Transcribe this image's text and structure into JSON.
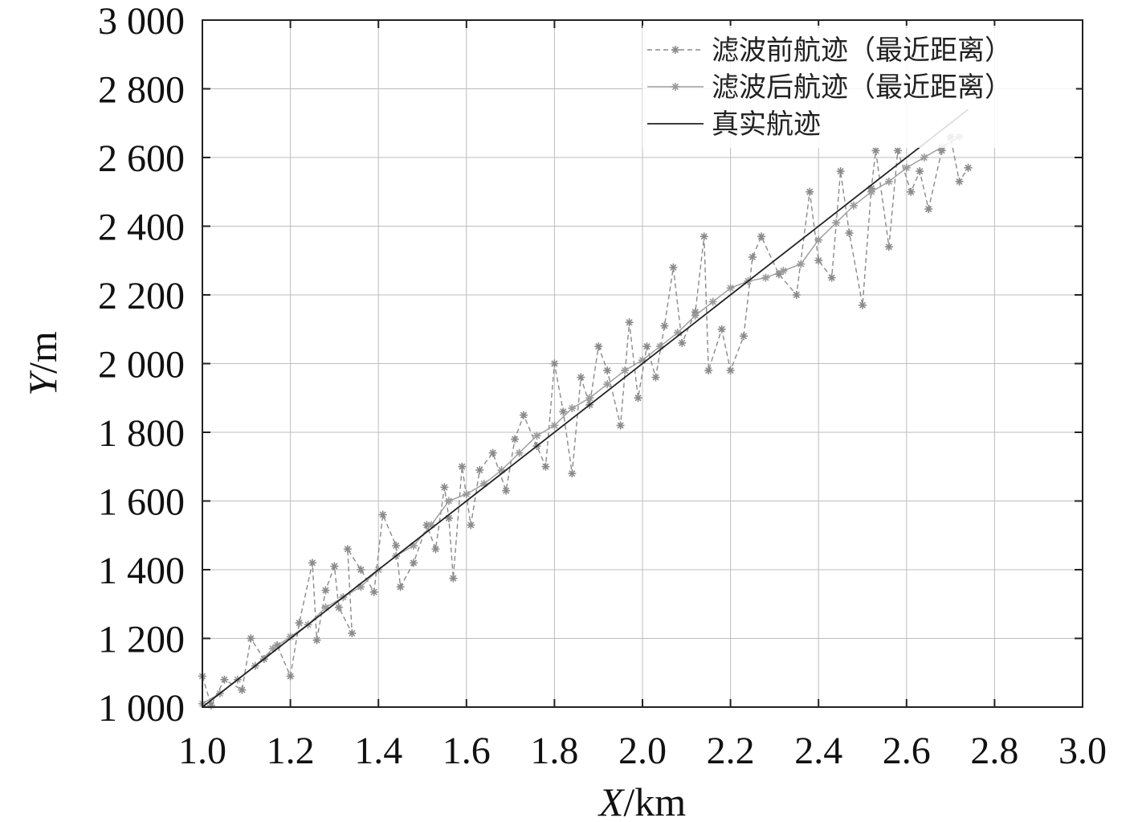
{
  "chart_data": {
    "type": "line",
    "title": "",
    "xlabel_italic": "X",
    "xlabel_unit": "/km",
    "ylabel_italic": "Y",
    "ylabel_unit": "/m",
    "xlim": [
      1.0,
      3.0
    ],
    "ylim": [
      1000,
      3000
    ],
    "x_ticks": [
      "1.0",
      "1.2",
      "1.4",
      "1.6",
      "1.8",
      "2.0",
      "2.2",
      "2.4",
      "2.6",
      "2.8",
      "3.0"
    ],
    "y_ticks": [
      "1 000",
      "1 200",
      "1 400",
      "1 600",
      "1 800",
      "2 000",
      "2 200",
      "2 400",
      "2 600",
      "2 800",
      "3 000"
    ],
    "grid": true,
    "legend_position": "top-right",
    "legend": [
      "滤波前航迹（最近距离）",
      "滤波后航迹（最近距离）",
      "真实航迹"
    ],
    "series": [
      {
        "name": "滤波前航迹（最近距离）",
        "style": "dashed-star",
        "color": "#8a8a8a",
        "points": [
          [
            1.0,
            1090
          ],
          [
            1.02,
            1005
          ],
          [
            1.05,
            1080
          ],
          [
            1.09,
            1050
          ],
          [
            1.11,
            1200
          ],
          [
            1.14,
            1140
          ],
          [
            1.17,
            1180
          ],
          [
            1.2,
            1090
          ],
          [
            1.22,
            1245
          ],
          [
            1.25,
            1420
          ],
          [
            1.26,
            1195
          ],
          [
            1.28,
            1340
          ],
          [
            1.3,
            1410
          ],
          [
            1.31,
            1290
          ],
          [
            1.34,
            1215
          ],
          [
            1.33,
            1460
          ],
          [
            1.36,
            1400
          ],
          [
            1.39,
            1335
          ],
          [
            1.41,
            1560
          ],
          [
            1.44,
            1470
          ],
          [
            1.45,
            1350
          ],
          [
            1.48,
            1420
          ],
          [
            1.51,
            1530
          ],
          [
            1.53,
            1460
          ],
          [
            1.55,
            1640
          ],
          [
            1.56,
            1550
          ],
          [
            1.57,
            1375
          ],
          [
            1.59,
            1700
          ],
          [
            1.61,
            1530
          ],
          [
            1.63,
            1690
          ],
          [
            1.66,
            1740
          ],
          [
            1.69,
            1630
          ],
          [
            1.71,
            1780
          ],
          [
            1.73,
            1850
          ],
          [
            1.76,
            1760
          ],
          [
            1.78,
            1700
          ],
          [
            1.8,
            2000
          ],
          [
            1.82,
            1860
          ],
          [
            1.84,
            1680
          ],
          [
            1.86,
            1960
          ],
          [
            1.88,
            1880
          ],
          [
            1.9,
            2050
          ],
          [
            1.92,
            1980
          ],
          [
            1.95,
            1820
          ],
          [
            1.97,
            2120
          ],
          [
            1.99,
            1900
          ],
          [
            2.01,
            2050
          ],
          [
            2.03,
            1960
          ],
          [
            2.05,
            2110
          ],
          [
            2.07,
            2280
          ],
          [
            2.09,
            2060
          ],
          [
            2.12,
            2150
          ],
          [
            2.14,
            2370
          ],
          [
            2.15,
            1980
          ],
          [
            2.18,
            2100
          ],
          [
            2.2,
            1980
          ],
          [
            2.23,
            2080
          ],
          [
            2.25,
            2310
          ],
          [
            2.27,
            2370
          ],
          [
            2.31,
            2260
          ],
          [
            2.35,
            2200
          ],
          [
            2.38,
            2500
          ],
          [
            2.4,
            2300
          ],
          [
            2.43,
            2250
          ],
          [
            2.45,
            2560
          ],
          [
            2.47,
            2380
          ],
          [
            2.5,
            2170
          ],
          [
            2.52,
            2510
          ],
          [
            2.53,
            2620
          ],
          [
            2.56,
            2340
          ],
          [
            2.58,
            2620
          ],
          [
            2.61,
            2500
          ],
          [
            2.63,
            2560
          ],
          [
            2.65,
            2450
          ],
          [
            2.68,
            2620
          ],
          [
            2.7,
            2660
          ],
          [
            2.72,
            2530
          ],
          [
            2.74,
            2570
          ]
        ]
      },
      {
        "name": "滤波后航迹（最近距离）",
        "style": "solid-star",
        "color": "#9a9a9a",
        "points": [
          [
            1.0,
            1010
          ],
          [
            1.04,
            1040
          ],
          [
            1.08,
            1080
          ],
          [
            1.12,
            1120
          ],
          [
            1.16,
            1170
          ],
          [
            1.2,
            1205
          ],
          [
            1.24,
            1240
          ],
          [
            1.28,
            1290
          ],
          [
            1.32,
            1320
          ],
          [
            1.36,
            1350
          ],
          [
            1.4,
            1400
          ],
          [
            1.44,
            1440
          ],
          [
            1.48,
            1470
          ],
          [
            1.52,
            1530
          ],
          [
            1.56,
            1600
          ],
          [
            1.6,
            1620
          ],
          [
            1.64,
            1650
          ],
          [
            1.68,
            1690
          ],
          [
            1.72,
            1740
          ],
          [
            1.76,
            1790
          ],
          [
            1.8,
            1820
          ],
          [
            1.84,
            1870
          ],
          [
            1.88,
            1900
          ],
          [
            1.92,
            1940
          ],
          [
            1.96,
            1980
          ],
          [
            2.0,
            2010
          ],
          [
            2.04,
            2050
          ],
          [
            2.08,
            2090
          ],
          [
            2.12,
            2140
          ],
          [
            2.16,
            2180
          ],
          [
            2.2,
            2220
          ],
          [
            2.24,
            2240
          ],
          [
            2.28,
            2250
          ],
          [
            2.32,
            2270
          ],
          [
            2.36,
            2290
          ],
          [
            2.4,
            2360
          ],
          [
            2.44,
            2410
          ],
          [
            2.48,
            2460
          ],
          [
            2.52,
            2500
          ],
          [
            2.56,
            2530
          ],
          [
            2.6,
            2570
          ],
          [
            2.64,
            2600
          ],
          [
            2.68,
            2630
          ],
          [
            2.72,
            2660
          ]
        ]
      },
      {
        "name": "真实航迹",
        "style": "solid",
        "color": "#222222",
        "points": [
          [
            1.0,
            1000
          ],
          [
            2.74,
            2740
          ]
        ]
      }
    ]
  }
}
